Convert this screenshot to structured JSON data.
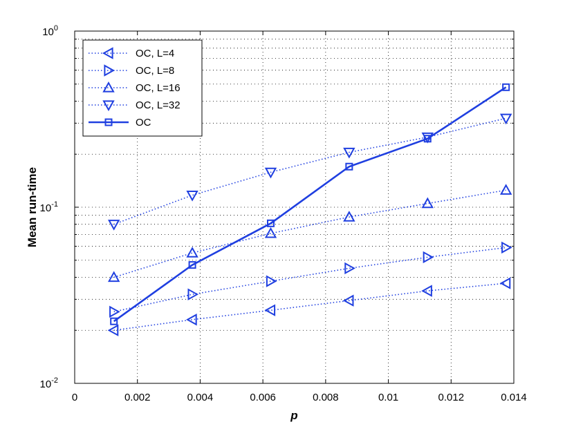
{
  "chart_data": {
    "type": "line",
    "title": "",
    "xlabel": "p",
    "ylabel": "Mean run-time",
    "xlim": [
      0,
      0.014
    ],
    "ylim": [
      0.01,
      1
    ],
    "yscale": "log",
    "grid": true,
    "legend_position": "top-left",
    "x_ticks": [
      "0",
      "0.002",
      "0.004",
      "0.006",
      "0.008",
      "0.01",
      "0.012",
      "0.014"
    ],
    "y_ticks": [
      {
        "base": "10",
        "exp": "-2"
      },
      {
        "base": "10",
        "exp": "-1"
      },
      {
        "base": "10",
        "exp": "0"
      }
    ],
    "color": "#1f3fe0",
    "x": [
      0.00125,
      0.00375,
      0.00625,
      0.00875,
      0.01125,
      0.01375
    ],
    "series": [
      {
        "name": "OC, L=4",
        "marker": "triangle-left",
        "style": "dotted",
        "values": [
          0.02,
          0.023,
          0.026,
          0.0295,
          0.0335,
          0.037
        ]
      },
      {
        "name": "OC, L=8",
        "marker": "triangle-right",
        "style": "dotted",
        "values": [
          0.0255,
          0.032,
          0.038,
          0.045,
          0.052,
          0.059
        ]
      },
      {
        "name": "OC, L=16",
        "marker": "triangle-up",
        "style": "dotted",
        "values": [
          0.04,
          0.055,
          0.071,
          0.088,
          0.105,
          0.125
        ]
      },
      {
        "name": "OC, L=32",
        "marker": "triangle-down",
        "style": "dotted",
        "values": [
          0.08,
          0.117,
          0.158,
          0.205,
          0.25,
          0.32
        ]
      },
      {
        "name": "OC",
        "marker": "square",
        "style": "solid",
        "values": [
          0.0225,
          0.047,
          0.081,
          0.17,
          0.245,
          0.48
        ]
      }
    ]
  }
}
